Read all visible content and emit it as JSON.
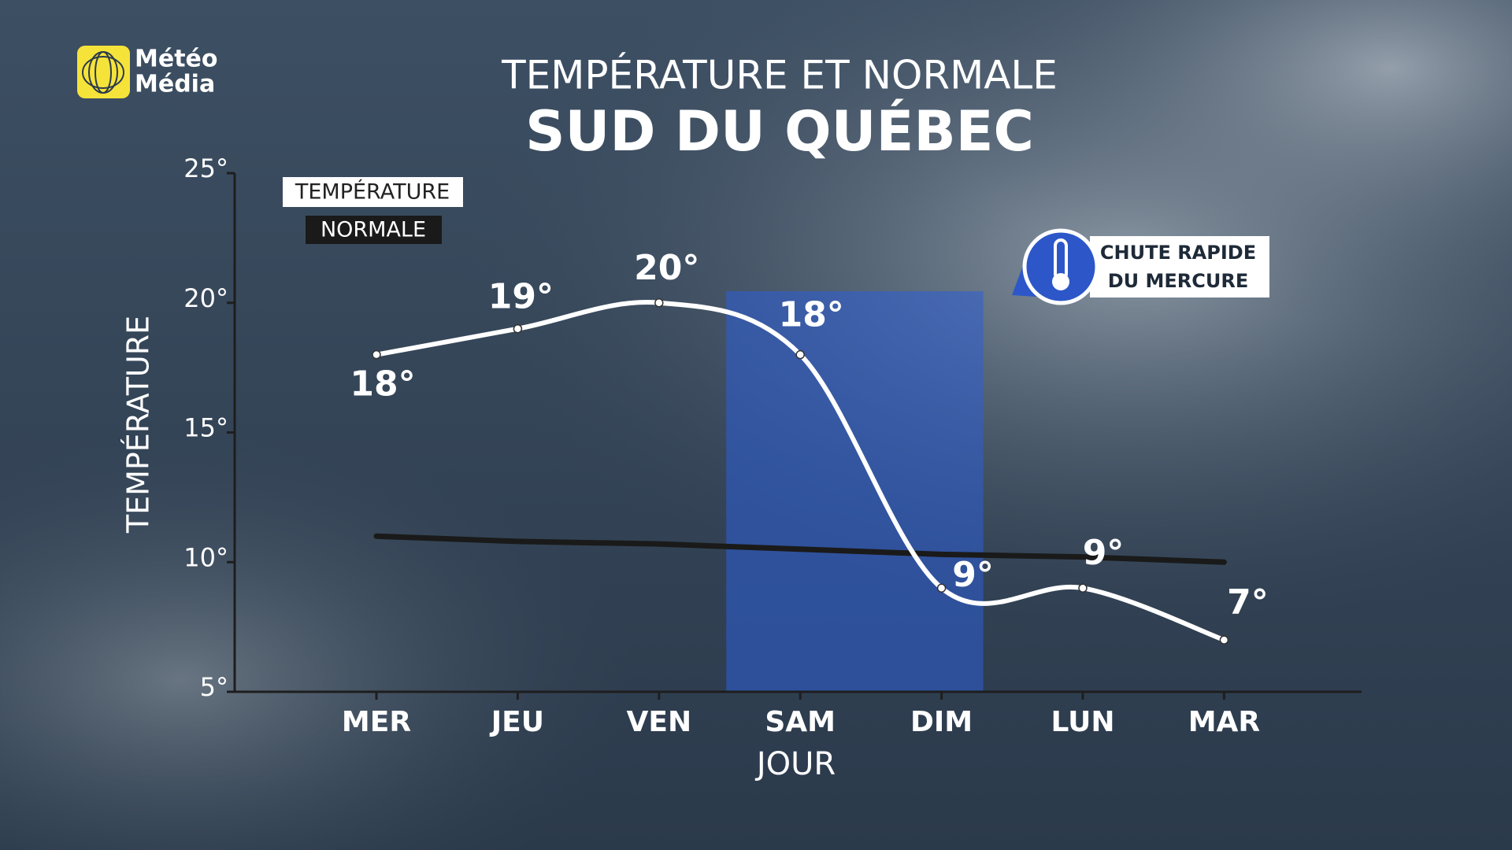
{
  "brand": {
    "line1": "Météo",
    "line2": "Média"
  },
  "chart_data": {
    "type": "line",
    "title": "TEMPÉRATURE ET NORMALE",
    "subtitle": "SUD DU QUÉBEC",
    "y_label": "TEMPÉRATURE",
    "x_label": "JOUR",
    "categories": [
      "MER",
      "JEU",
      "VEN",
      "SAM",
      "DIM",
      "LUN",
      "MAR"
    ],
    "series": [
      {
        "name": "TEMPÉRATURE",
        "color": "#ffffff",
        "values": [
          18,
          19,
          20,
          18,
          9,
          9,
          7
        ],
        "value_labels": [
          "18°",
          "19°",
          "20°",
          "18°",
          "9°",
          "9°",
          "7°"
        ]
      },
      {
        "name": "NORMALE",
        "color": "#1a1a1a",
        "values": [
          11,
          10.8,
          10.7,
          10.5,
          10.3,
          10.2,
          10
        ]
      }
    ],
    "ylim": [
      5,
      25
    ],
    "yticks": [
      {
        "value": 5,
        "label": "5°"
      },
      {
        "value": 10,
        "label": "10°"
      },
      {
        "value": 15,
        "label": "15°"
      },
      {
        "value": 20,
        "label": "20°"
      },
      {
        "value": 25,
        "label": "25°"
      }
    ],
    "annotation": {
      "lines": [
        "CHUTE RAPIDE",
        "DU MERCURE"
      ]
    }
  }
}
